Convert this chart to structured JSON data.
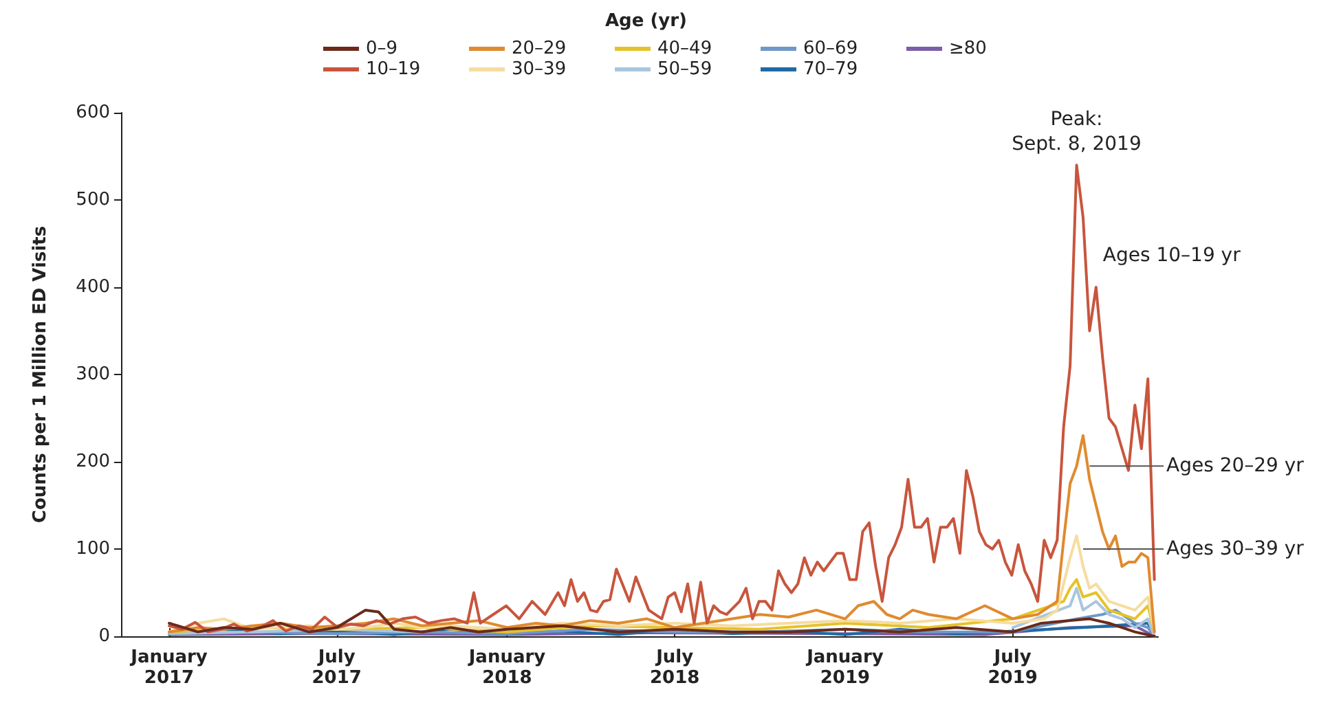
{
  "chart_data": {
    "type": "line",
    "ylabel": "Counts per 1 Million ED Visits",
    "legend_title": "Age (yr)",
    "legend": "top",
    "grid": false,
    "marker": "none",
    "line_style": "solid",
    "xlim": [
      "2016-11-10",
      "2019-12-05"
    ],
    "ylim": [
      0,
      600
    ],
    "yticks": [
      0,
      100,
      200,
      300,
      400,
      500,
      600
    ],
    "xticks": [
      {
        "value": "2017-01-01",
        "label": "January\n2017"
      },
      {
        "value": "2017-07-01",
        "label": "July\n2017"
      },
      {
        "value": "2018-01-01",
        "label": "January\n2018"
      },
      {
        "value": "2018-07-01",
        "label": "July\n2018"
      },
      {
        "value": "2019-01-01",
        "label": "January\n2019"
      },
      {
        "value": "2019-07-01",
        "label": "July\n2019"
      }
    ],
    "annotations": [
      {
        "text": "Peak:\nSept. 8, 2019",
        "x": "2019-09-08",
        "y": 540
      },
      {
        "text": "Ages 10–19 yr",
        "x": "2019-09-29",
        "y": 400
      },
      {
        "text": "Ages 20–29 yr",
        "x": "2019-09-22",
        "y": 195
      },
      {
        "text": "Ages 30–39 yr",
        "x": "2019-09-15",
        "y": 100
      }
    ],
    "series": [
      {
        "name": "0–9",
        "color": "#6b2a1a",
        "x": [
          "2017-01-01",
          "2017-02-01",
          "2017-03-01",
          "2017-04-01",
          "2017-05-01",
          "2017-06-01",
          "2017-07-01",
          "2017-08-01",
          "2017-08-15",
          "2017-09-01",
          "2017-10-01",
          "2017-11-01",
          "2017-12-01",
          "2018-01-01",
          "2018-03-01",
          "2018-05-01",
          "2018-07-01",
          "2018-09-01",
          "2018-11-01",
          "2019-01-01",
          "2019-03-01",
          "2019-05-01",
          "2019-07-01",
          "2019-08-01",
          "2019-09-22",
          "2019-10-13",
          "2019-11-10",
          "2019-12-01"
        ],
        "values": [
          15,
          5,
          10,
          8,
          15,
          5,
          10,
          30,
          28,
          8,
          5,
          10,
          5,
          8,
          12,
          5,
          8,
          5,
          5,
          8,
          5,
          10,
          5,
          15,
          20,
          15,
          5,
          0
        ]
      },
      {
        "name": "10–19",
        "color": "#c8553d",
        "x": [
          "2017-01-01",
          "2017-01-15",
          "2017-01-29",
          "2017-02-12",
          "2017-02-26",
          "2017-03-12",
          "2017-03-26",
          "2017-04-09",
          "2017-04-23",
          "2017-05-07",
          "2017-05-21",
          "2017-06-04",
          "2017-06-18",
          "2017-07-02",
          "2017-07-16",
          "2017-07-30",
          "2017-08-13",
          "2017-08-27",
          "2017-09-10",
          "2017-09-24",
          "2017-10-08",
          "2017-10-22",
          "2017-11-05",
          "2017-11-19",
          "2017-11-26",
          "2017-12-03",
          "2017-12-17",
          "2017-12-31",
          "2018-01-14",
          "2018-01-28",
          "2018-02-11",
          "2018-02-25",
          "2018-03-04",
          "2018-03-11",
          "2018-03-18",
          "2018-03-25",
          "2018-04-01",
          "2018-04-08",
          "2018-04-15",
          "2018-04-22",
          "2018-04-29",
          "2018-05-13",
          "2018-05-20",
          "2018-06-03",
          "2018-06-17",
          "2018-06-24",
          "2018-07-01",
          "2018-07-08",
          "2018-07-15",
          "2018-07-22",
          "2018-07-29",
          "2018-08-05",
          "2018-08-12",
          "2018-08-19",
          "2018-08-26",
          "2018-09-09",
          "2018-09-16",
          "2018-09-23",
          "2018-09-30",
          "2018-10-07",
          "2018-10-14",
          "2018-10-21",
          "2018-10-28",
          "2018-11-04",
          "2018-11-11",
          "2018-11-18",
          "2018-11-25",
          "2018-12-02",
          "2018-12-09",
          "2018-12-16",
          "2018-12-23",
          "2018-12-30",
          "2019-01-06",
          "2019-01-13",
          "2019-01-20",
          "2019-01-27",
          "2019-02-03",
          "2019-02-10",
          "2019-02-17",
          "2019-02-24",
          "2019-03-03",
          "2019-03-10",
          "2019-03-17",
          "2019-03-24",
          "2019-03-31",
          "2019-04-07",
          "2019-04-14",
          "2019-04-21",
          "2019-04-28",
          "2019-05-05",
          "2019-05-12",
          "2019-05-19",
          "2019-05-26",
          "2019-06-02",
          "2019-06-09",
          "2019-06-16",
          "2019-06-23",
          "2019-06-30",
          "2019-07-07",
          "2019-07-14",
          "2019-07-21",
          "2019-07-28",
          "2019-08-04",
          "2019-08-11",
          "2019-08-18",
          "2019-08-25",
          "2019-09-01",
          "2019-09-08",
          "2019-09-15",
          "2019-09-22",
          "2019-09-29",
          "2019-10-06",
          "2019-10-13",
          "2019-10-20",
          "2019-10-27",
          "2019-11-03",
          "2019-11-10",
          "2019-11-17",
          "2019-11-24",
          "2019-12-01"
        ],
        "values": [
          12,
          8,
          16,
          5,
          8,
          14,
          6,
          10,
          18,
          6,
          12,
          8,
          22,
          10,
          14,
          12,
          18,
          14,
          20,
          22,
          15,
          18,
          20,
          15,
          50,
          15,
          25,
          35,
          20,
          40,
          25,
          50,
          35,
          65,
          40,
          50,
          30,
          28,
          40,
          42,
          77,
          40,
          68,
          30,
          20,
          45,
          50,
          28,
          60,
          15,
          62,
          15,
          35,
          28,
          25,
          40,
          55,
          20,
          40,
          40,
          30,
          75,
          60,
          50,
          60,
          90,
          70,
          85,
          75,
          85,
          95,
          95,
          65,
          65,
          120,
          130,
          80,
          40,
          90,
          105,
          125,
          180,
          125,
          125,
          135,
          85,
          125,
          125,
          135,
          95,
          190,
          160,
          120,
          105,
          100,
          110,
          85,
          70,
          105,
          75,
          60,
          40,
          110,
          90,
          110,
          240,
          310,
          540,
          480,
          350,
          400,
          320,
          250,
          240,
          215,
          190,
          265,
          215,
          295,
          65
        ]
      },
      {
        "name": "20–29",
        "color": "#e08a2e",
        "x": [
          "2017-01-01",
          "2017-02-01",
          "2017-03-01",
          "2017-04-01",
          "2017-05-01",
          "2017-06-01",
          "2017-07-01",
          "2017-08-01",
          "2017-09-01",
          "2017-10-01",
          "2017-11-01",
          "2017-12-01",
          "2018-01-01",
          "2018-02-01",
          "2018-03-01",
          "2018-04-01",
          "2018-05-01",
          "2018-06-01",
          "2018-07-01",
          "2018-08-01",
          "2018-09-01",
          "2018-10-01",
          "2018-11-01",
          "2018-12-01",
          "2019-01-01",
          "2019-01-15",
          "2019-02-01",
          "2019-02-15",
          "2019-03-01",
          "2019-03-15",
          "2019-04-01",
          "2019-05-01",
          "2019-06-01",
          "2019-07-01",
          "2019-07-28",
          "2019-08-04",
          "2019-08-11",
          "2019-08-18",
          "2019-08-25",
          "2019-09-01",
          "2019-09-08",
          "2019-09-15",
          "2019-09-22",
          "2019-09-29",
          "2019-10-06",
          "2019-10-13",
          "2019-10-20",
          "2019-10-27",
          "2019-11-03",
          "2019-11-10",
          "2019-11-17",
          "2019-11-24",
          "2019-12-01"
        ],
        "values": [
          5,
          10,
          8,
          12,
          15,
          10,
          12,
          15,
          20,
          12,
          15,
          18,
          10,
          15,
          12,
          18,
          15,
          20,
          10,
          15,
          20,
          25,
          22,
          30,
          20,
          35,
          40,
          25,
          20,
          30,
          25,
          20,
          35,
          20,
          25,
          30,
          35,
          40,
          110,
          175,
          195,
          230,
          180,
          150,
          120,
          100,
          115,
          80,
          85,
          85,
          95,
          90,
          5
        ]
      },
      {
        "name": "30–39",
        "color": "#f6dca0",
        "x": [
          "2017-01-01",
          "2017-02-01",
          "2017-03-01",
          "2017-04-01",
          "2017-05-01",
          "2017-06-01",
          "2017-07-01",
          "2017-08-01",
          "2017-09-01",
          "2017-10-01",
          "2017-11-01",
          "2017-12-01",
          "2018-01-01",
          "2018-03-01",
          "2018-05-01",
          "2018-07-01",
          "2018-09-01",
          "2018-11-01",
          "2019-01-01",
          "2019-03-01",
          "2019-05-01",
          "2019-07-01",
          "2019-08-04",
          "2019-08-18",
          "2019-08-25",
          "2019-09-01",
          "2019-09-08",
          "2019-09-15",
          "2019-09-22",
          "2019-09-29",
          "2019-10-13",
          "2019-10-27",
          "2019-11-10",
          "2019-11-24",
          "2019-12-01"
        ],
        "values": [
          5,
          15,
          20,
          8,
          10,
          12,
          8,
          10,
          15,
          10,
          12,
          10,
          8,
          15,
          12,
          15,
          12,
          15,
          18,
          15,
          20,
          15,
          20,
          30,
          60,
          90,
          115,
          80,
          55,
          60,
          40,
          35,
          30,
          45,
          5
        ]
      },
      {
        "name": "40–49",
        "color": "#e6c22a",
        "x": [
          "2017-01-01",
          "2017-04-01",
          "2017-07-01",
          "2017-10-01",
          "2018-01-01",
          "2018-04-01",
          "2018-07-01",
          "2018-10-01",
          "2019-01-01",
          "2019-04-01",
          "2019-07-01",
          "2019-08-25",
          "2019-09-01",
          "2019-09-08",
          "2019-09-15",
          "2019-09-29",
          "2019-10-13",
          "2019-10-27",
          "2019-11-10",
          "2019-11-24",
          "2019-12-01"
        ],
        "values": [
          5,
          10,
          8,
          10,
          5,
          12,
          10,
          8,
          15,
          10,
          20,
          40,
          55,
          65,
          45,
          50,
          30,
          25,
          20,
          35,
          5
        ]
      },
      {
        "name": "50–59",
        "color": "#a9c6de",
        "x": [
          "2017-01-01",
          "2017-04-01",
          "2017-07-01",
          "2017-10-01",
          "2018-01-01",
          "2018-04-01",
          "2018-07-01",
          "2018-10-01",
          "2019-01-01",
          "2019-04-01",
          "2019-07-01",
          "2019-09-01",
          "2019-09-08",
          "2019-09-15",
          "2019-09-29",
          "2019-10-13",
          "2019-10-27",
          "2019-11-10",
          "2019-11-24",
          "2019-12-01"
        ],
        "values": [
          3,
          5,
          8,
          5,
          null,
          null,
          null,
          null,
          null,
          null,
          10,
          35,
          55,
          30,
          40,
          25,
          20,
          10,
          20,
          0
        ]
      },
      {
        "name": "60–69",
        "color": "#6e98c8",
        "x": [
          "2017-01-01",
          "2017-04-01",
          "2017-07-01",
          "2017-10-01",
          "2018-01-01",
          "2018-04-01",
          "2018-07-01",
          "2018-10-01",
          "2019-01-01",
          "2019-04-01",
          "2019-07-01",
          "2019-09-08",
          "2019-10-06",
          "2019-10-20",
          "2019-11-10",
          "2019-11-24",
          "2019-12-01"
        ],
        "values": [
          3,
          5,
          3,
          5,
          3,
          8,
          5,
          5,
          8,
          5,
          5,
          20,
          25,
          30,
          15,
          10,
          0
        ]
      },
      {
        "name": "70–79",
        "color": "#1f6aa5",
        "x": [
          "2017-01-01",
          "2017-03-01",
          "2017-05-01",
          "2017-07-01",
          "2017-09-01",
          "2017-11-01",
          "2018-01-01",
          "2018-03-01",
          "2018-05-01",
          "2018-07-01",
          "2018-09-01",
          "2018-11-01",
          "2019-01-01",
          "2019-03-01",
          "2019-05-01",
          "2019-07-01",
          "2019-09-15",
          "2019-11-24",
          "2019-12-01"
        ],
        "values": [
          2,
          8,
          3,
          6,
          2,
          8,
          3,
          6,
          2,
          8,
          3,
          6,
          2,
          8,
          3,
          6,
          10,
          15,
          0
        ]
      },
      {
        "name": "≥80",
        "color": "#7b5ea7",
        "x": [
          "2017-01-01",
          "2017-06-01",
          "2018-01-01",
          "2018-06-01",
          "2019-01-01",
          "2019-06-01",
          "2019-09-01",
          "2019-11-10",
          "2019-12-01"
        ],
        "values": [
          2,
          3,
          2,
          4,
          3,
          2,
          10,
          12,
          0
        ]
      }
    ]
  }
}
